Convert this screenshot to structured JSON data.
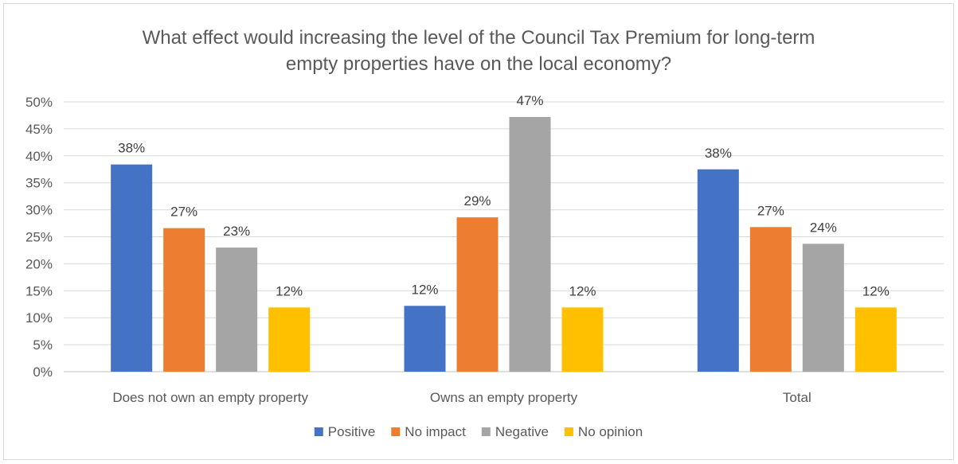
{
  "chart_data": {
    "type": "bar",
    "title_lines": [
      "What effect would increasing the level of the Council Tax Premium for long-term",
      "empty properties have on the local economy?"
    ],
    "categories": [
      "Does not own an empty property",
      "Owns an empty property",
      "Total"
    ],
    "series": [
      {
        "name": "Positive",
        "color": "#4472c4",
        "values": [
          38.4,
          12.2,
          37.5
        ],
        "labels": [
          "38%",
          "12%",
          "38%"
        ]
      },
      {
        "name": "No impact",
        "color": "#ed7d31",
        "values": [
          26.6,
          28.6,
          26.8
        ],
        "labels": [
          "27%",
          "29%",
          "27%"
        ]
      },
      {
        "name": "Negative",
        "color": "#a5a5a5",
        "values": [
          23.0,
          47.2,
          23.7
        ],
        "labels": [
          "23%",
          "47%",
          "24%"
        ]
      },
      {
        "name": "No opinion",
        "color": "#ffc000",
        "values": [
          11.9,
          11.9,
          11.9
        ],
        "labels": [
          "12%",
          "12%",
          "12%"
        ]
      }
    ],
    "ylim": [
      0,
      50
    ],
    "yticks": [
      "0%",
      "5%",
      "10%",
      "15%",
      "20%",
      "25%",
      "30%",
      "35%",
      "40%",
      "45%",
      "50%"
    ],
    "grid": true,
    "legend_position": "bottom"
  }
}
